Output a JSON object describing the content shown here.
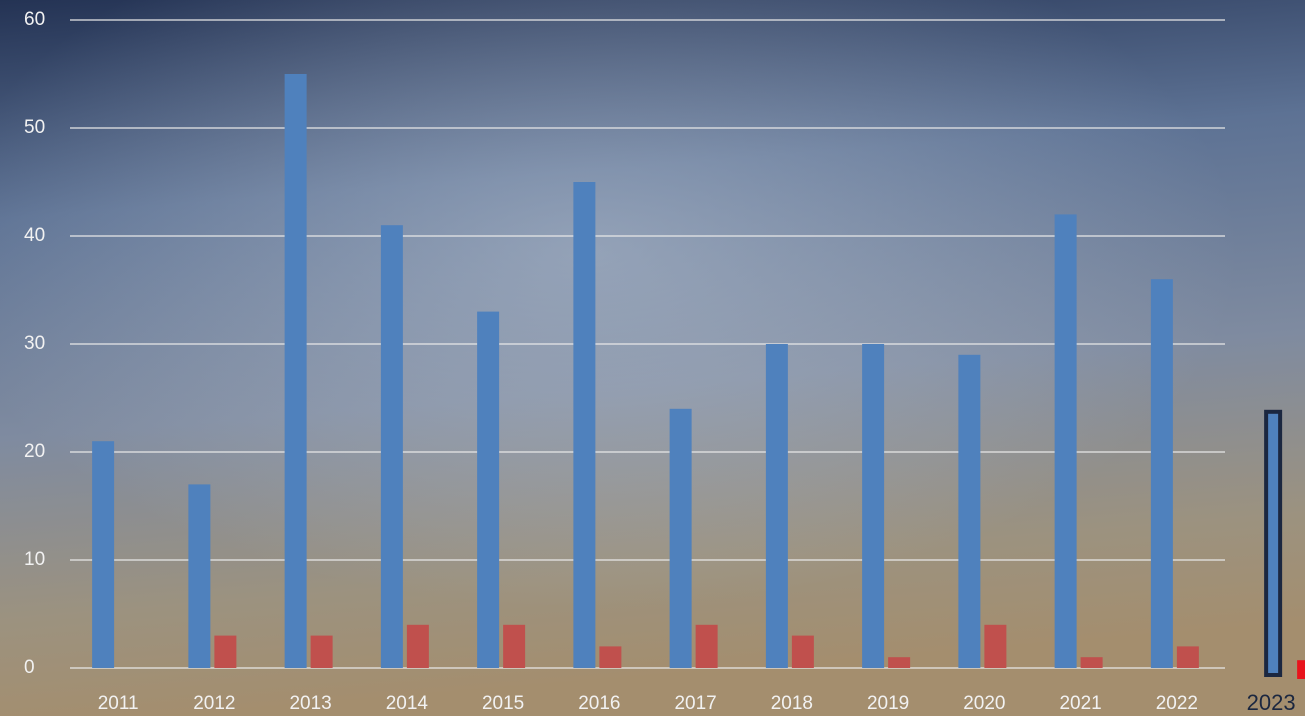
{
  "chart_data": {
    "type": "bar",
    "categories": [
      "2011",
      "2012",
      "2013",
      "2014",
      "2015",
      "2016",
      "2017",
      "2018",
      "2019",
      "2020",
      "2021",
      "2022",
      "2023"
    ],
    "series": [
      {
        "color": "#4f81bd",
        "values": [
          21,
          17,
          55,
          41,
          33,
          45,
          24,
          30,
          30,
          29,
          42,
          36,
          24
        ]
      },
      {
        "color": "#c0504d",
        "values": [
          0,
          3,
          3,
          4,
          4,
          2,
          4,
          3,
          1,
          4,
          1,
          2,
          1
        ]
      }
    ],
    "ylim": [
      0,
      60
    ],
    "yticks": [
      0,
      10,
      20,
      30,
      40,
      50,
      60
    ],
    "grid": true
  }
}
